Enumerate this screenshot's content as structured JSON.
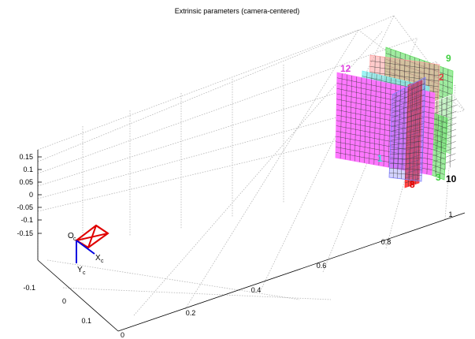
{
  "chart_data": {
    "type": "3d-plot",
    "title": "Extrinsic parameters (camera-centered)",
    "grid": true,
    "axes": {
      "z_ticks": [
        "0.15",
        "0.1",
        "0.05",
        "0",
        "-0.05",
        "-0.1",
        "-0.15"
      ],
      "x_ticks": [
        "-0.1",
        "0",
        "0.1",
        "0"
      ],
      "y_ticks": [
        "0.2",
        "0.4",
        "0.6",
        "0.8",
        "1"
      ]
    },
    "camera_frame": {
      "origin_label": "O",
      "origin_sub": "c",
      "x_label": "X",
      "x_sub": "c",
      "y_label": "Y",
      "y_sub": "c",
      "colors": {
        "frustum": "#e00000",
        "axes": "#0000e0"
      }
    },
    "boards": [
      {
        "label": "12",
        "color": "#e040e0"
      },
      {
        "label": "9",
        "color": "#40d040"
      },
      {
        "label": "2",
        "color": "#e04040"
      },
      {
        "label": "1",
        "color": "#40e0e0"
      },
      {
        "label": "8",
        "color": "#e00000"
      },
      {
        "label": "3",
        "color": "#40d040"
      },
      {
        "label": "10",
        "color": "#000000"
      }
    ]
  }
}
